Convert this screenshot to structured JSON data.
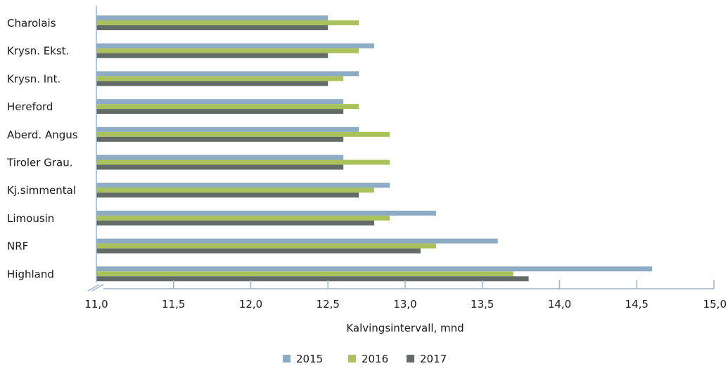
{
  "chart_data": {
    "type": "bar",
    "orientation": "horizontal",
    "categories": [
      "Charolais",
      "Krysn. Ekst.",
      "Krysn. Int.",
      "Hereford",
      "Aberd. Angus",
      "Tiroler Grau.",
      "Kj.simmental",
      "Limousin",
      "NRF",
      "Highland"
    ],
    "series": [
      {
        "name": "2015",
        "color": "#8eabc4",
        "values": [
          12.5,
          12.8,
          12.7,
          12.6,
          12.7,
          12.6,
          12.9,
          13.2,
          13.6,
          14.6
        ]
      },
      {
        "name": "2016",
        "color": "#a9c25c",
        "values": [
          12.7,
          12.7,
          12.6,
          12.7,
          12.9,
          12.9,
          12.8,
          12.9,
          13.2,
          13.7
        ]
      },
      {
        "name": "2017",
        "color": "#636b66",
        "values": [
          12.5,
          12.5,
          12.5,
          12.6,
          12.6,
          12.6,
          12.7,
          12.8,
          13.1,
          13.8
        ]
      }
    ],
    "xlabel": "Kalvingsintervall, mnd",
    "xlim": [
      11.0,
      15.0
    ],
    "ticks": [
      "11,0",
      "11,5",
      "12,0",
      "12,5",
      "13,0",
      "13,5",
      "14,0",
      "14,5",
      "15,0"
    ],
    "axis_break": true,
    "grid": false,
    "legend_position": "bottom",
    "axis_color": "#9bb3c9"
  }
}
